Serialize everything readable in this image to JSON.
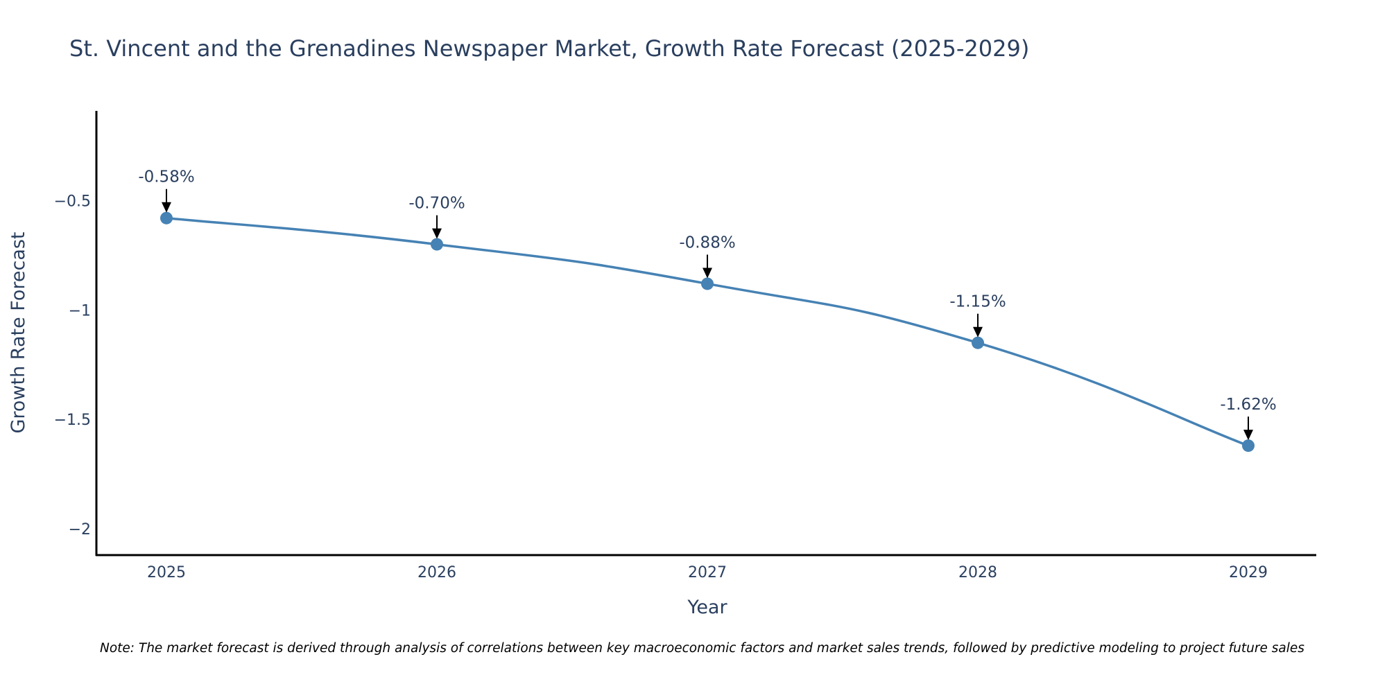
{
  "chart_data": {
    "type": "line",
    "title": "St. Vincent and the Grenadines Newspaper Market, Growth Rate Forecast (2025-2029)",
    "xlabel": "Year",
    "ylabel": "Growth Rate Forecast",
    "categories": [
      "2025",
      "2026",
      "2027",
      "2028",
      "2029"
    ],
    "series": [
      {
        "name": "Growth Rate Forecast",
        "values": [
          -0.58,
          -0.7,
          -0.88,
          -1.15,
          -1.62
        ],
        "labels": [
          "-0.58%",
          "-0.70%",
          "-0.88%",
          "-1.15%",
          "-1.62%"
        ],
        "color": "#4682b4"
      }
    ],
    "ylim": [
      -2.12,
      -0.09
    ],
    "y_ticks": [
      -0.5,
      -1,
      -1.5,
      -2
    ],
    "y_tick_labels": [
      "−0.5",
      "−1",
      "−1.5",
      "−2"
    ],
    "grid": false,
    "line_shape": "spline",
    "note": "Note: The market forecast is derived through analysis of correlations between key macroeconomic factors and market sales trends, followed by predictive modeling to project future sales"
  }
}
